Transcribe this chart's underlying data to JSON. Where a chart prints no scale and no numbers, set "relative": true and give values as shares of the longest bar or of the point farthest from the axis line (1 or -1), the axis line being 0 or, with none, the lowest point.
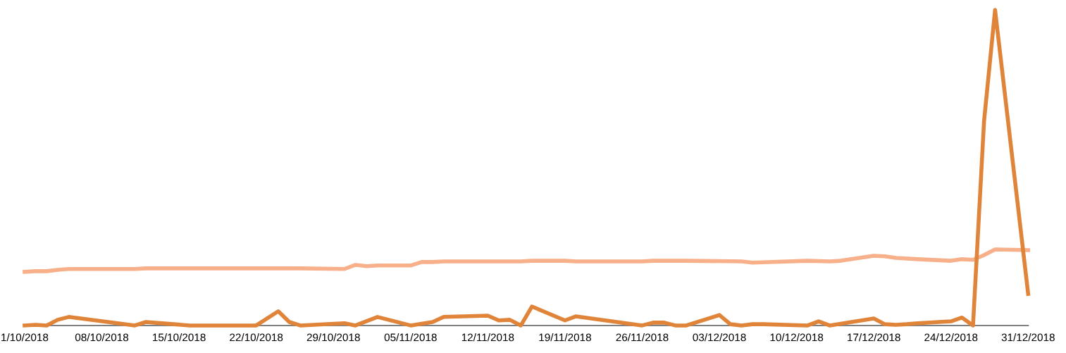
{
  "chart_data": {
    "type": "line",
    "relative": true,
    "grid": false,
    "legend": false,
    "marker": "none",
    "line_style": "solid",
    "xlim": [
      "2018-10-01",
      "2018-12-31"
    ],
    "xticks": [
      {
        "value": "2018-10-01",
        "label": "1/10/2018"
      },
      {
        "value": "2018-10-08",
        "label": "08/10/2018"
      },
      {
        "value": "2018-10-15",
        "label": "15/10/2018"
      },
      {
        "value": "2018-10-22",
        "label": "22/10/2018"
      },
      {
        "value": "2018-10-29",
        "label": "29/10/2018"
      },
      {
        "value": "2018-11-05",
        "label": "05/11/2018"
      },
      {
        "value": "2018-11-12",
        "label": "12/11/2018"
      },
      {
        "value": "2018-11-19",
        "label": "19/11/2018"
      },
      {
        "value": "2018-11-26",
        "label": "26/11/2018"
      },
      {
        "value": "2018-12-03",
        "label": "03/12/2018"
      },
      {
        "value": "2018-12-10",
        "label": "10/12/2018"
      },
      {
        "value": "2018-12-17",
        "label": "17/12/2018"
      },
      {
        "value": "2018-12-24",
        "label": "24/12/2018"
      },
      {
        "value": "2018-12-31",
        "label": "31/12/2018"
      }
    ],
    "series": [
      {
        "color": "#f7b08a",
        "x": [
          "2018-10-01",
          "2018-10-02",
          "2018-10-03",
          "2018-10-04",
          "2018-10-05",
          "2018-10-11",
          "2018-10-12",
          "2018-10-22",
          "2018-10-26",
          "2018-10-30",
          "2018-10-31",
          "2018-11-01",
          "2018-11-02",
          "2018-11-05",
          "2018-11-06",
          "2018-11-07",
          "2018-11-08",
          "2018-11-15",
          "2018-11-16",
          "2018-11-19",
          "2018-11-20",
          "2018-11-26",
          "2018-11-27",
          "2018-11-30",
          "2018-12-05",
          "2018-12-06",
          "2018-12-11",
          "2018-12-13",
          "2018-12-14",
          "2018-12-17",
          "2018-12-18",
          "2018-12-19",
          "2018-12-21",
          "2018-12-24",
          "2018-12-25",
          "2018-12-26",
          "2018-12-27",
          "2018-12-28",
          "2018-12-31"
        ],
        "values": [
          0.17,
          0.172,
          0.172,
          0.176,
          0.179,
          0.179,
          0.181,
          0.181,
          0.181,
          0.179,
          0.192,
          0.188,
          0.19,
          0.19,
          0.201,
          0.201,
          0.203,
          0.203,
          0.205,
          0.205,
          0.203,
          0.203,
          0.205,
          0.205,
          0.203,
          0.199,
          0.205,
          0.203,
          0.205,
          0.221,
          0.219,
          0.214,
          0.21,
          0.205,
          0.21,
          0.208,
          0.223,
          0.241,
          0.239
        ]
      },
      {
        "color": "#e0843a",
        "x": [
          "2018-10-01",
          "2018-10-02",
          "2018-10-03",
          "2018-10-04",
          "2018-10-05",
          "2018-10-11",
          "2018-10-12",
          "2018-10-16",
          "2018-10-22",
          "2018-10-24",
          "2018-10-25",
          "2018-10-26",
          "2018-10-30",
          "2018-10-31",
          "2018-11-02",
          "2018-11-05",
          "2018-11-07",
          "2018-11-08",
          "2018-11-12",
          "2018-11-13",
          "2018-11-14",
          "2018-11-15",
          "2018-11-16",
          "2018-11-19",
          "2018-11-20",
          "2018-11-26",
          "2018-11-27",
          "2018-11-28",
          "2018-11-29",
          "2018-11-30",
          "2018-12-03",
          "2018-12-04",
          "2018-12-05",
          "2018-12-06",
          "2018-12-07",
          "2018-12-11",
          "2018-12-12",
          "2018-12-13",
          "2018-12-17",
          "2018-12-18",
          "2018-12-19",
          "2018-12-20",
          "2018-12-21",
          "2018-12-24",
          "2018-12-25",
          "2018-12-26",
          "2018-12-27",
          "2018-12-28",
          "2018-12-31"
        ],
        "values": [
          0,
          0.002,
          0,
          0.018,
          0.027,
          0,
          0.011,
          0,
          0,
          0.045,
          0.011,
          0,
          0.007,
          0,
          0.027,
          0,
          0.011,
          0.027,
          0.031,
          0.016,
          0.018,
          0,
          0.06,
          0.016,
          0.029,
          0,
          0.009,
          0.009,
          0,
          0,
          0.033,
          0.004,
          0,
          0.004,
          0.004,
          0,
          0.013,
          0,
          0.022,
          0.004,
          0.002,
          0.004,
          0.007,
          0.013,
          0.025,
          0,
          0.647,
          1,
          0.1
        ]
      }
    ]
  }
}
